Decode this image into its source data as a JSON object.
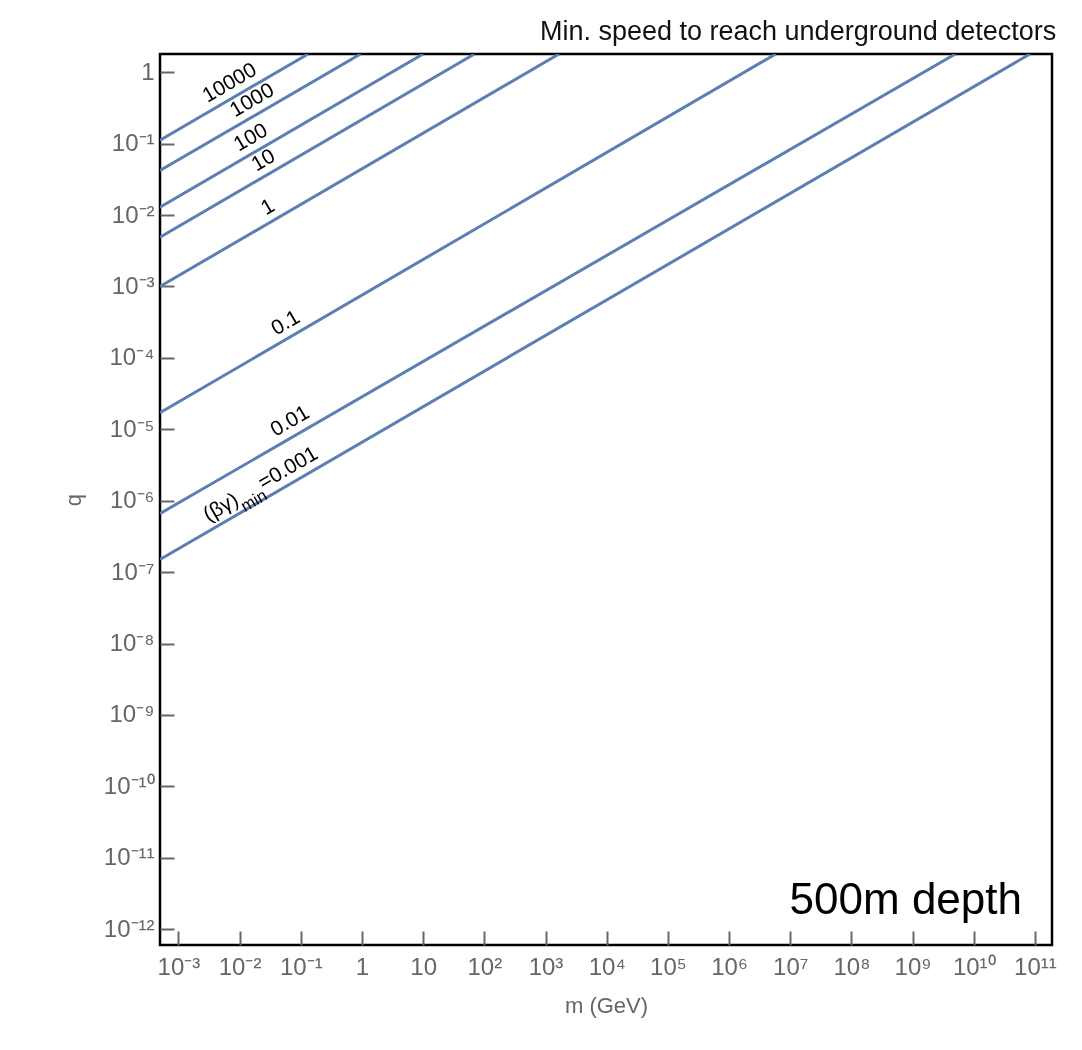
{
  "chart_data": {
    "type": "line",
    "title": "Min. speed to reach underground detectors",
    "xlabel": "m (GeV)",
    "ylabel": "q",
    "log": "xy",
    "line_style": "solid",
    "marker": "none",
    "xlim": [
      0.0005,
      190000000000.0
    ],
    "ylim": [
      6e-13,
      1.8
    ],
    "xticks": [
      {
        "value": 0.001,
        "label": "10⁻³"
      },
      {
        "value": 0.01,
        "label": "10⁻²"
      },
      {
        "value": 0.1,
        "label": "10⁻¹"
      },
      1,
      10,
      {
        "value": 100,
        "label": "10²"
      },
      {
        "value": 1000,
        "label": "10³"
      },
      {
        "value": 10000,
        "label": "10⁴"
      },
      {
        "value": 100000,
        "label": "10⁵"
      },
      {
        "value": 1000000,
        "label": "10⁶"
      },
      {
        "value": 10000000,
        "label": "10⁷"
      },
      {
        "value": 100000000,
        "label": "10⁸"
      },
      {
        "value": 1000000000,
        "label": "10⁹"
      },
      {
        "value": 10000000000,
        "label": "10¹⁰"
      },
      {
        "value": 100000000000,
        "label": "10¹¹"
      }
    ],
    "yticks": [
      {
        "value": 1e-12,
        "label": "10⁻¹²"
      },
      {
        "value": 1e-11,
        "label": "10⁻¹¹"
      },
      {
        "value": 1e-10,
        "label": "10⁻¹⁰"
      },
      {
        "value": 1e-09,
        "label": "10⁻⁹"
      },
      {
        "value": 1e-08,
        "label": "10⁻⁸"
      },
      {
        "value": 1e-07,
        "label": "10⁻⁷"
      },
      {
        "value": 1e-06,
        "label": "10⁻⁶"
      },
      {
        "value": 1e-05,
        "label": "10⁻⁵"
      },
      {
        "value": 0.0001,
        "label": "10⁻⁴"
      },
      {
        "value": 0.001,
        "label": "10⁻³"
      },
      {
        "value": 0.01,
        "label": "10⁻²"
      },
      {
        "value": 0.1,
        "label": "10⁻¹"
      },
      1
    ],
    "series": [
      {
        "color": "#5b7fb5",
        "x": [
          0.0005,
          0.132
        ],
        "values": [
          0.112,
          1.8
        ]
      },
      {
        "color": "#5b7fb5",
        "x": [
          0.0005,
          0.95
        ],
        "values": [
          0.042,
          1.8
        ]
      },
      {
        "color": "#5b7fb5",
        "x": [
          0.0005,
          10
        ],
        "values": [
          0.0129,
          1.8
        ]
      },
      {
        "color": "#5b7fb5",
        "x": [
          0.0005,
          69
        ],
        "values": [
          0.0049,
          1.8
        ]
      },
      {
        "color": "#5b7fb5",
        "x": [
          0.0005,
          1660
        ],
        "values": [
          0.001,
          1.8
        ]
      },
      {
        "color": "#5b7fb5",
        "x": [
          0.0005,
          5800000.0
        ],
        "values": [
          1.7e-05,
          1.8
        ]
      },
      {
        "color": "#5b7fb5",
        "x": [
          0.0005,
          5000000000.0
        ],
        "values": [
          6.6e-07,
          1.8
        ]
      },
      {
        "color": "#5b7fb5",
        "x": [
          0.0005,
          83000000000.0
        ],
        "values": [
          1.5e-07,
          1.8
        ]
      }
    ],
    "annotations": [
      {
        "text": "10000",
        "x": 0.009,
        "y": 0.475
      },
      {
        "text": "1000",
        "x": 0.021,
        "y": 0.272
      },
      {
        "text": "100",
        "x": 0.02,
        "y": 0.0816
      },
      {
        "text": "10",
        "x": 0.032,
        "y": 0.0392
      },
      {
        "text": "1",
        "x": 0.038,
        "y": 0.0087
      },
      {
        "text": "0.1",
        "x": 0.074,
        "y": 0.000207
      },
      {
        "text": "0.01",
        "x": 0.087,
        "y": 8.7e-06
      },
      {
        "text": "(βγ)$_{min}$=0.001",
        "x": 0.029,
        "y": 1.14e-06
      },
      "500m depth"
    ]
  }
}
